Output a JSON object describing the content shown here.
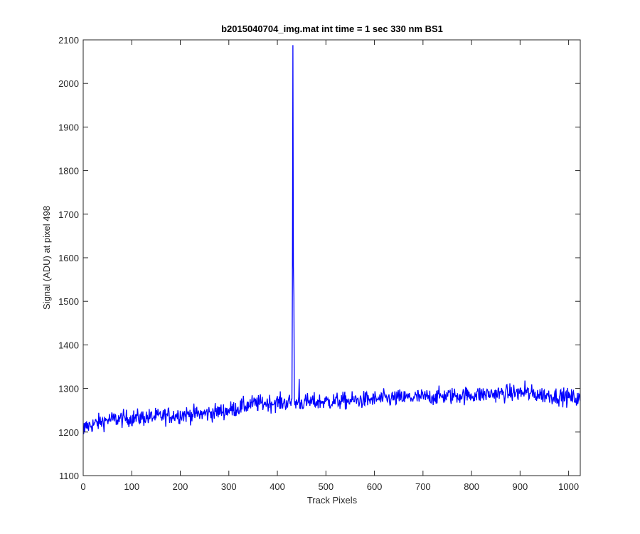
{
  "chart_data": {
    "type": "line",
    "title": "b2015040704_img.mat int time = 1 sec  330 nm BS1",
    "xlabel": "Track Pixels",
    "ylabel": "Signal (ADU) at pixel 498",
    "xlim": [
      0,
      1024
    ],
    "ylim": [
      1100,
      2100
    ],
    "xticks": [
      0,
      100,
      200,
      300,
      400,
      500,
      600,
      700,
      800,
      900,
      1000
    ],
    "yticks": [
      1100,
      1200,
      1300,
      1400,
      1500,
      1600,
      1700,
      1800,
      1900,
      2000,
      2100
    ],
    "grid": false,
    "line_color": "#0000ff",
    "noise_amplitude": 10,
    "trend": {
      "x": [
        0,
        50,
        100,
        150,
        200,
        250,
        300,
        350,
        400,
        450,
        500,
        550,
        600,
        650,
        700,
        750,
        800,
        850,
        900,
        950,
        1000,
        1024
      ],
      "y": [
        1210,
        1228,
        1232,
        1235,
        1240,
        1242,
        1250,
        1265,
        1268,
        1268,
        1270,
        1272,
        1275,
        1278,
        1280,
        1283,
        1285,
        1288,
        1290,
        1285,
        1280,
        1275
      ]
    },
    "features": [
      {
        "x": 1,
        "y": 1195
      },
      {
        "x": 3,
        "y": 1200
      },
      {
        "x": 431,
        "y": 1540
      },
      {
        "x": 432,
        "y": 2088
      },
      {
        "x": 433,
        "y": 1580
      },
      {
        "x": 434,
        "y": 1510
      },
      {
        "x": 435,
        "y": 1275
      },
      {
        "x": 445,
        "y": 1322
      },
      {
        "x": 910,
        "y": 1318
      }
    ]
  }
}
